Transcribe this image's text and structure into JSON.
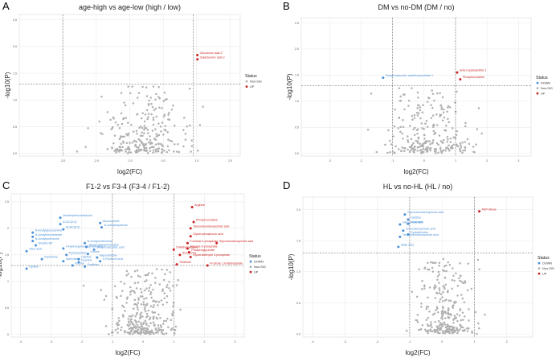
{
  "colors": {
    "down": "#4a90d9",
    "nonsig": "#b0b0b0",
    "up": "#cc2222",
    "grid": "#ebebeb",
    "threshold": "#555555"
  },
  "chart_data": [
    {
      "panel": "A",
      "type": "scatter",
      "title": "age-high vs age-low (high / low)",
      "xlabel": "log2(FC)",
      "ylabel": "-log10(P)",
      "xlim": [
        -4.3,
        2.3
      ],
      "ylim": [
        -0.05,
        2.6
      ],
      "xticks": [
        -3,
        -2,
        -1,
        0,
        1,
        2
      ],
      "xtick_labels": [
        "-3.0",
        "-2.0",
        "-1.0",
        "0.0",
        "1.0",
        "2.0"
      ],
      "yticks": [
        0,
        0.5,
        1,
        1.5,
        2,
        2.5
      ],
      "ytick_labels": [
        "0.0",
        "0.5",
        "1.0",
        "1.5",
        "2.0",
        "2.5"
      ],
      "vlines": [
        -3.0,
        0.9
      ],
      "hline": 1.3,
      "legend": {
        "title": "Status",
        "entries": [
          {
            "label": "Non-SIG",
            "status": "nonsig"
          },
          {
            "label": "UP",
            "status": "up"
          }
        ]
      },
      "labeled_points": [
        {
          "label": "Glucuronic acid-2",
          "x": 1.02,
          "y": 1.84,
          "status": "up"
        },
        {
          "label": "Galacturonic acid-2",
          "x": 1.02,
          "y": 1.76,
          "status": "up"
        }
      ],
      "cloud": {
        "n": 260,
        "cx": -0.6,
        "sx": 0.6,
        "ymax": 1.2
      }
    },
    {
      "panel": "B",
      "type": "scatter",
      "title": "DM vs no-DM (DM / no)",
      "xlabel": "log2(FC)",
      "ylabel": "-log10(P)",
      "xlim": [
        -3.9,
        3.4
      ],
      "ylim": [
        -0.05,
        2.6
      ],
      "xticks": [
        -3,
        -2,
        -1,
        0,
        1,
        2,
        3
      ],
      "xtick_labels": [
        "-3",
        "-2",
        "-1",
        "0",
        "1",
        "2",
        "3"
      ],
      "yticks": [
        0,
        0.5,
        1,
        1.5,
        2,
        2.5
      ],
      "ytick_labels": [
        "0.0",
        "0.5",
        "1.0",
        "1.5",
        "2.0",
        "2.5"
      ],
      "vlines": [
        -1.0,
        1.0
      ],
      "hline": 1.3,
      "legend": {
        "title": "Status",
        "entries": [
          {
            "label": "DOWN",
            "status": "down"
          },
          {
            "label": "Non-SIG",
            "status": "nonsig"
          },
          {
            "label": "UP",
            "status": "up"
          }
        ]
      },
      "labeled_points": [
        {
          "label": "Dehydroascorbic acid/Isoascorbate 1",
          "x": -1.3,
          "y": 1.45,
          "status": "down"
        },
        {
          "label": "beta-Cryptoxanthin 2",
          "x": 1.05,
          "y": 1.55,
          "status": "up"
        },
        {
          "label": "Phosphocreatine",
          "x": 1.15,
          "y": 1.42,
          "status": "up"
        }
      ],
      "cloud": {
        "n": 260,
        "cx": 0.1,
        "sx": 0.7,
        "ymax": 1.2
      }
    },
    {
      "panel": "C",
      "type": "scatter",
      "title": "F1-2 vs F3-4 (F3-4 / F1-2)",
      "xlabel": "log2(FC)",
      "ylabel": "-log10(P)",
      "xlim": [
        -4.3,
        3.3
      ],
      "ylim": [
        -0.05,
        2.65
      ],
      "xticks": [
        -4,
        -3,
        -2,
        -1,
        0,
        1,
        2,
        3
      ],
      "xtick_labels": [
        "-4",
        "-3",
        "-2",
        "-1",
        "0",
        "1",
        "2",
        "3"
      ],
      "yticks": [
        0,
        0.5,
        1,
        1.5,
        2,
        2.5
      ],
      "ytick_labels": [
        "0",
        "0.5",
        "1",
        "1.5",
        "2",
        "2.5"
      ],
      "vlines": [
        -1.0,
        1.0
      ],
      "hline": 1.3,
      "legend": {
        "title": "Status",
        "entries": [
          {
            "label": "DOWN",
            "status": "down"
          },
          {
            "label": "Non-SIG",
            "status": "nonsig"
          },
          {
            "label": "UP",
            "status": "up"
          }
        ]
      },
      "labeled_points": [
        {
          "label": "Dimethylbenzimidazole",
          "x": -2.7,
          "y": 2.2,
          "status": "down"
        },
        {
          "label": "ACAC(0:0)",
          "x": -2.7,
          "y": 2.08,
          "status": "down"
        },
        {
          "label": "ACAC(0:0)",
          "x": -2.6,
          "y": 1.98,
          "status": "down"
        },
        {
          "label": "Glucosamine",
          "x": -1.4,
          "y": 2.1,
          "status": "down"
        },
        {
          "label": "N-Acetyldopamine",
          "x": -1.35,
          "y": 2.02,
          "status": "down"
        },
        {
          "label": "N-Acetylglucosamine",
          "x": -3.6,
          "y": 1.92,
          "status": "down"
        },
        {
          "label": "N-Acetylneuraminate",
          "x": -3.6,
          "y": 1.84,
          "status": "down"
        },
        {
          "label": "N-Acetylputrescine",
          "x": -3.6,
          "y": 1.76,
          "status": "down"
        },
        {
          "label": "GlcNAc-6P",
          "x": -3.5,
          "y": 1.68,
          "status": "down"
        },
        {
          "label": "N-Acetylmethionine",
          "x": -1.9,
          "y": 1.72,
          "status": "down"
        },
        {
          "label": "Glycerophosphocholine",
          "x": -1.85,
          "y": 1.65,
          "status": "down"
        },
        {
          "label": "Dehydroascorbic acid",
          "x": -1.6,
          "y": 1.6,
          "status": "down"
        },
        {
          "label": "4-Hydroxyphenylpyruvic acid",
          "x": -2.6,
          "y": 1.62,
          "status": "down"
        },
        {
          "label": "Oleic acid",
          "x": -3.8,
          "y": 1.57,
          "status": "down"
        },
        {
          "label": "Pyridoxamine",
          "x": -2.5,
          "y": 1.5,
          "status": "down"
        },
        {
          "label": "Uridine",
          "x": -1.8,
          "y": 1.52,
          "status": "down"
        },
        {
          "label": "Pyridoxine",
          "x": -3.3,
          "y": 1.42,
          "status": "down"
        },
        {
          "label": "Cytidine",
          "x": -2.1,
          "y": 1.42,
          "status": "down"
        },
        {
          "label": "Hypoxanthine",
          "x": -1.5,
          "y": 1.45,
          "status": "down"
        },
        {
          "label": "Spermidine",
          "x": -2.6,
          "y": 1.38,
          "status": "down"
        },
        {
          "label": "Guanine",
          "x": -2.1,
          "y": 1.36,
          "status": "down"
        },
        {
          "label": "4-Pyridoxic acid",
          "x": -1.4,
          "y": 1.38,
          "status": "down"
        },
        {
          "label": "Inosine",
          "x": -2.3,
          "y": 1.3,
          "status": "down"
        },
        {
          "label": "Ornithine",
          "x": -1.9,
          "y": 1.28,
          "status": "down"
        },
        {
          "label": "Cystine",
          "x": -3.8,
          "y": 1.24,
          "status": "down"
        },
        {
          "label": "Arginine",
          "x": 1.6,
          "y": 2.4,
          "status": "up"
        },
        {
          "label": "Phosphocreatine",
          "x": 1.65,
          "y": 2.12,
          "status": "up"
        },
        {
          "label": "Taurochenodeoxycholic acid",
          "x": 1.55,
          "y": 2.0,
          "status": "up"
        },
        {
          "label": "Glycerophosphoric acid",
          "x": 1.55,
          "y": 1.85,
          "status": "up"
        },
        {
          "label": "Fructose 6-phosphate",
          "x": 1.45,
          "y": 1.72,
          "status": "up"
        },
        {
          "label": "Glycoursodeoxycholic acid",
          "x": 2.4,
          "y": 1.72,
          "status": "up"
        },
        {
          "label": "Glucose 6-phosphate",
          "x": 1.45,
          "y": 1.62,
          "status": "up"
        },
        {
          "label": "5-Methylcytosine",
          "x": 1.0,
          "y": 1.6,
          "status": "up"
        },
        {
          "label": "Phosphoglycerate",
          "x": 1.5,
          "y": 1.55,
          "status": "up"
        },
        {
          "label": "Glyceraldehyde 3-phosphate",
          "x": 1.55,
          "y": 1.46,
          "status": "up"
        },
        {
          "label": "ACC(10:0)",
          "x": 1.2,
          "y": 1.5,
          "status": "up"
        },
        {
          "label": "Fructose 1,6-diphosphate",
          "x": 2.1,
          "y": 1.3,
          "status": "up"
        },
        {
          "label": "Thiamine",
          "x": 1.1,
          "y": 1.32,
          "status": "up"
        }
      ],
      "cloud": {
        "n": 300,
        "cx": 0.0,
        "sx": 0.55,
        "ymax": 1.2
      }
    },
    {
      "panel": "D",
      "type": "scatter",
      "title": "HL vs no-HL (HL / no)",
      "xlabel": "log2(FC)",
      "ylabel": "-log10(P)",
      "xlim": [
        -4.3,
        2.8
      ],
      "ylim": [
        -0.05,
        2.2
      ],
      "xticks": [
        -4,
        -3,
        -2,
        -1,
        0,
        1,
        2
      ],
      "xtick_labels": [
        "-4",
        "-3",
        "-2",
        "-1",
        "0",
        "1",
        "2"
      ],
      "yticks": [
        0,
        0.5,
        1,
        1.5,
        2
      ],
      "ytick_labels": [
        "0.0",
        "0.5",
        "1.0",
        "1.5",
        "2.0"
      ],
      "vlines": [
        -1.0,
        1.0
      ],
      "hline": 1.3,
      "legend": {
        "title": "Status",
        "entries": [
          {
            "label": "DOWN",
            "status": "down"
          },
          {
            "label": "Non-SIG",
            "status": "nonsig"
          },
          {
            "label": "UP",
            "status": "up"
          }
        ]
      },
      "labeled_points": [
        {
          "label": "ADP-ribose",
          "x": 1.15,
          "y": 1.97,
          "status": "up"
        },
        {
          "label": "Glycochenodeoxycholic acid",
          "x": -1.15,
          "y": 1.92,
          "status": "down"
        },
        {
          "label": "Cytidine",
          "x": -1.05,
          "y": 1.84,
          "status": "down"
        },
        {
          "label": "Glycocholic acid",
          "x": -1.3,
          "y": 1.76,
          "status": "down"
        },
        {
          "label": "Lactulose",
          "x": -1.05,
          "y": 1.77,
          "status": "down"
        },
        {
          "label": "Chenodeoxycholic acid",
          "x": -1.2,
          "y": 1.66,
          "status": "down"
        },
        {
          "label": "Cystathionine",
          "x": -1.05,
          "y": 1.6,
          "status": "down"
        },
        {
          "label": "Taurochenodeoxycholic acid",
          "x": -1.3,
          "y": 1.56,
          "status": "down"
        },
        {
          "label": "Malic acid",
          "x": -1.35,
          "y": 1.4,
          "status": "down"
        }
      ],
      "cloud": {
        "n": 280,
        "cx": 0.1,
        "sx": 0.45,
        "ymax": 1.2
      }
    }
  ],
  "panel_letters": [
    "A",
    "B",
    "C",
    "D"
  ]
}
